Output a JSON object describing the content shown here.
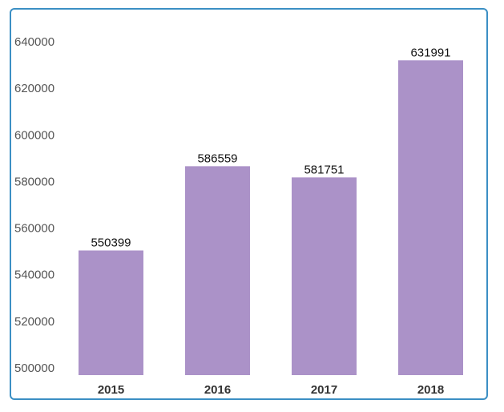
{
  "chart_data": {
    "type": "bar",
    "categories": [
      "2015",
      "2016",
      "2017",
      "2018"
    ],
    "values": [
      550399,
      586559,
      581751,
      631991
    ],
    "data_labels": [
      "550399",
      "586559",
      "581751",
      "631991"
    ],
    "y_ticks": [
      "640000",
      "620000",
      "600000",
      "580000",
      "560000",
      "540000",
      "520000",
      "500000"
    ],
    "ylim": [
      497000,
      645000
    ],
    "grid": false,
    "legend": "none",
    "bar_color": "#ab92c8",
    "border_color": "#3b8fc4"
  }
}
